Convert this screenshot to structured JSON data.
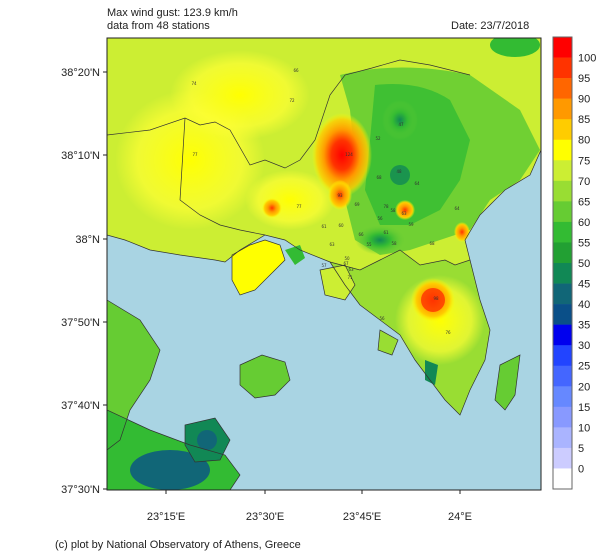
{
  "header": {
    "line1": "Max wind gust: 123.9 km/h",
    "line2": "data from 48 stations",
    "date": "Date: 23/7/2018"
  },
  "footer": {
    "credit": "(c) plot by National Observatory of Athens, Greece"
  },
  "axes": {
    "y_ticks": [
      "38°20'N",
      "38°10'N",
      "38°N",
      "37°50'N",
      "37°40'N",
      "37°30'N"
    ],
    "x_ticks": [
      "23°15'E",
      "23°30'E",
      "23°45'E",
      "24°E"
    ]
  },
  "colorbar": {
    "labels": [
      "100",
      "95",
      "90",
      "85",
      "80",
      "75",
      "70",
      "65",
      "60",
      "55",
      "50",
      "45",
      "40",
      "35",
      "30",
      "25",
      "20",
      "15",
      "10",
      "5",
      "0"
    ],
    "colors": [
      "#ff0000",
      "#ff3300",
      "#ff6600",
      "#ff9900",
      "#ffcc00",
      "#ffff00",
      "#ccee33",
      "#99dd33",
      "#66cc33",
      "#33bb33",
      "#22a033",
      "#118855",
      "#116677",
      "#0a4f88",
      "#0000ee",
      "#2244ff",
      "#4466ff",
      "#6688ff",
      "#8899ff",
      "#aab4ff",
      "#ccccff",
      "#ffffff"
    ]
  },
  "stations": [
    {
      "t": "66"
    },
    {
      "t": "74"
    },
    {
      "t": "72"
    },
    {
      "t": "77"
    },
    {
      "t": "124"
    },
    {
      "t": "47"
    },
    {
      "t": "52"
    },
    {
      "t": "48"
    },
    {
      "t": "64"
    },
    {
      "t": "93"
    },
    {
      "t": "77"
    },
    {
      "t": "68"
    },
    {
      "t": "69"
    },
    {
      "t": "78"
    },
    {
      "t": "61"
    },
    {
      "t": "60"
    },
    {
      "t": "58"
    },
    {
      "t": "63"
    },
    {
      "t": "56"
    },
    {
      "t": "61"
    },
    {
      "t": "55"
    },
    {
      "t": "58"
    },
    {
      "t": "50"
    },
    {
      "t": "63"
    },
    {
      "t": "68"
    },
    {
      "t": "98"
    },
    {
      "t": "76"
    },
    {
      "t": "56"
    },
    {
      "t": "57"
    },
    {
      "t": "67"
    },
    {
      "t": "63"
    },
    {
      "t": "71"
    },
    {
      "t": "66"
    },
    {
      "t": "59"
    },
    {
      "t": "64"
    }
  ]
}
